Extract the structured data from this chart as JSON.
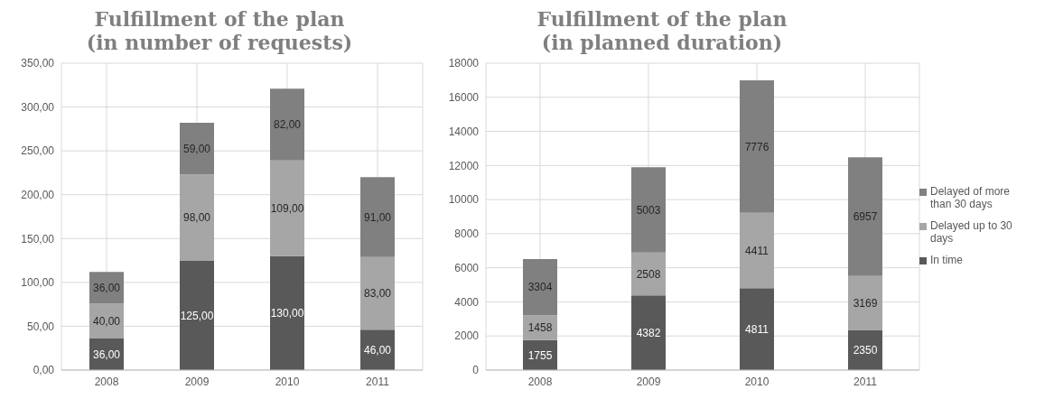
{
  "chart_data": [
    {
      "type": "bar",
      "title": "Fulfillment of the plan\n(in number of requests)",
      "categories": [
        "2008",
        "2009",
        "2010",
        "2011"
      ],
      "stacked": true,
      "grid": true,
      "ylim": [
        0,
        350
      ],
      "yticks": [
        {
          "value": 0,
          "label": "0,00"
        },
        {
          "value": 50,
          "label": "50,00"
        },
        {
          "value": 100,
          "label": "100,00"
        },
        {
          "value": 150,
          "label": "150,00"
        },
        {
          "value": 200,
          "label": "200,00"
        },
        {
          "value": 250,
          "label": "250,00"
        },
        {
          "value": 300,
          "label": "300,00"
        },
        {
          "value": 350,
          "label": "350,00"
        }
      ],
      "series": [
        {
          "color": "#595959",
          "values": [
            36,
            125,
            130,
            46
          ],
          "value_labels": [
            "36,00",
            "125,00",
            "130,00",
            "46,00"
          ]
        },
        {
          "color": "#a6a6a6",
          "values": [
            40,
            98,
            109,
            83
          ],
          "value_labels": [
            "40,00",
            "98,00",
            "109,00",
            "83,00"
          ]
        },
        {
          "color": "#808080",
          "values": [
            36,
            59,
            82,
            91
          ],
          "value_labels": [
            "36,00",
            "59,00",
            "82,00",
            "91,00"
          ]
        }
      ]
    },
    {
      "type": "bar",
      "title": "Fulfillment of the plan\n(in planned duration)",
      "categories": [
        "2008",
        "2009",
        "2010",
        "2011"
      ],
      "stacked": true,
      "grid": true,
      "data_labels": true,
      "legend": "right",
      "ylim": [
        0,
        18000
      ],
      "yticks": [
        0,
        2000,
        4000,
        6000,
        8000,
        10000,
        12000,
        14000,
        16000,
        18000
      ],
      "series": [
        {
          "name": "In time",
          "color": "#595959",
          "values": [
            1755,
            4382,
            4811,
            2350
          ]
        },
        {
          "name": "Delayed up to 30 days",
          "color": "#a6a6a6",
          "values": [
            1458,
            2508,
            4411,
            3169
          ]
        },
        {
          "name": "Delayed of more than 30 days",
          "color": "#808080",
          "values": [
            3304,
            5003,
            7776,
            6957
          ]
        }
      ]
    }
  ]
}
